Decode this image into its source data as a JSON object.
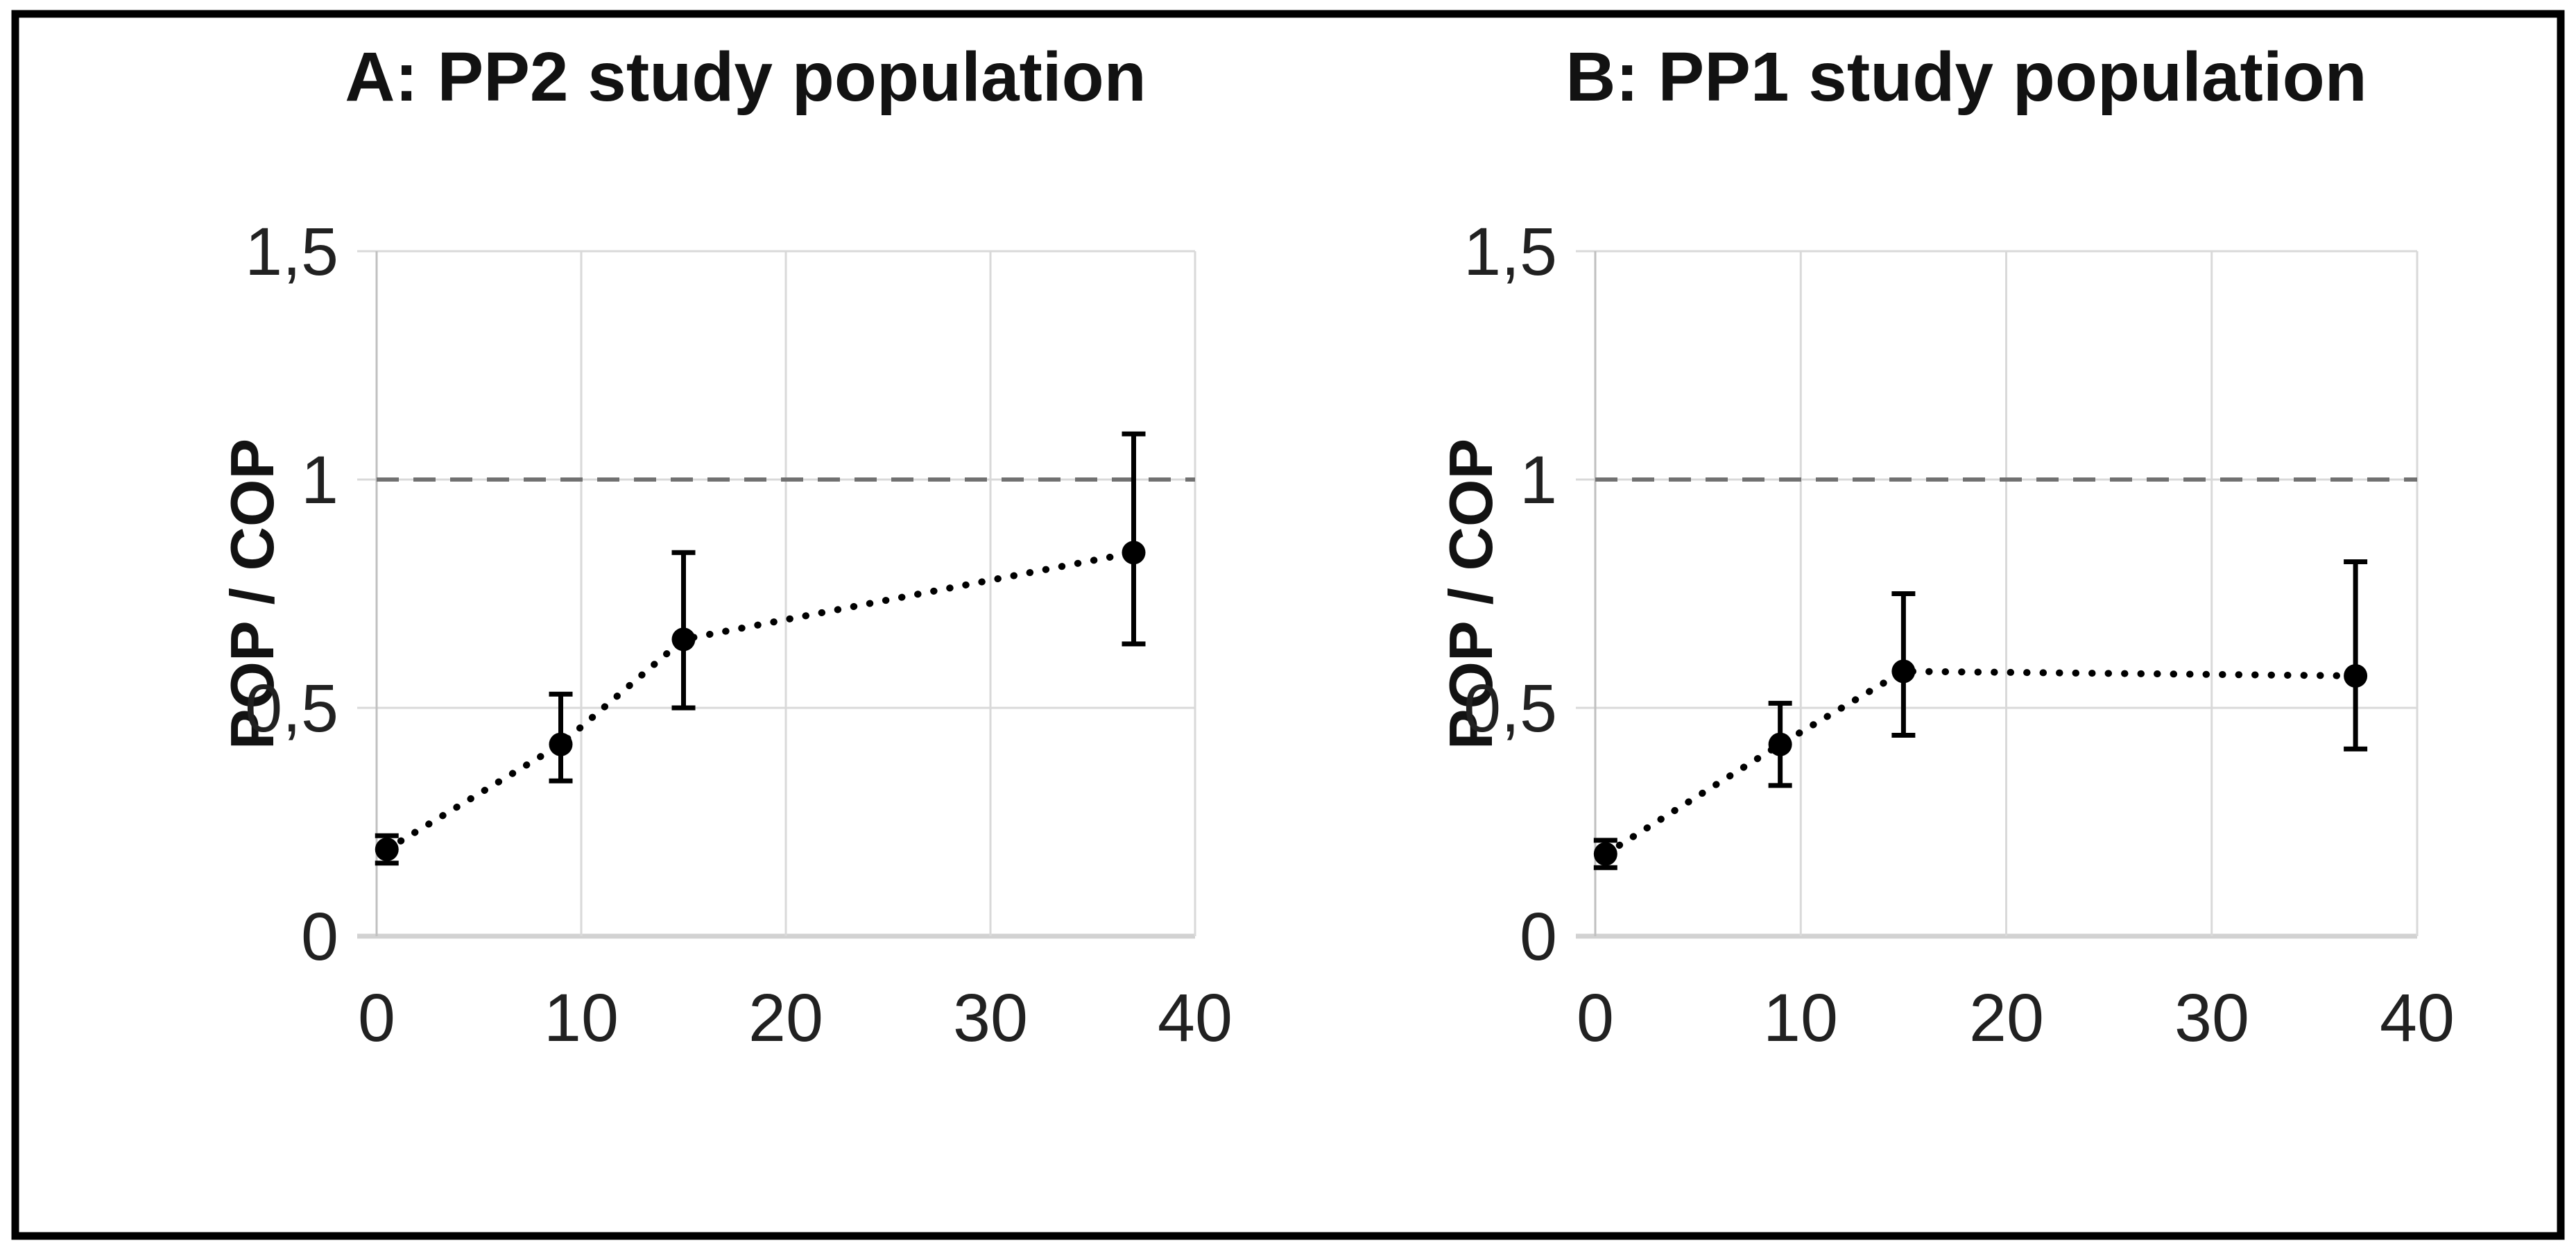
{
  "figure": {
    "background": "#ffffff",
    "border_color": "#000000"
  },
  "colors": {
    "gridline": "#d9d9d9",
    "axis_line": "#c0c0c0",
    "zero_axis_line": "#d2d2d2",
    "reference_line": "#717171",
    "series": "#000000",
    "error_bar": "#000000",
    "tick_label": "#212121",
    "title": "#121212"
  },
  "chart_data": [
    {
      "id": "A",
      "type": "line",
      "title": "A: PP2 study population",
      "ylabel": "POP / COP",
      "xlabel": "",
      "x": [
        0.5,
        9,
        15,
        37
      ],
      "y": [
        0.19,
        0.42,
        0.65,
        0.84
      ],
      "y_err_low": [
        0.16,
        0.34,
        0.5,
        0.64
      ],
      "y_err_high": [
        0.22,
        0.53,
        0.84,
        1.1
      ],
      "reference_line_y": 1,
      "xlim": [
        0,
        40
      ],
      "ylim": [
        0,
        1.5
      ],
      "x_ticks": [
        0,
        10,
        20,
        30,
        40
      ],
      "x_tick_labels": [
        "0",
        "10",
        "20",
        "30",
        "40"
      ],
      "y_ticks": [
        0,
        0.5,
        1,
        1.5
      ],
      "y_tick_labels": [
        "0",
        "0,5",
        "1",
        "1,5"
      ],
      "grid": true,
      "legend": "none",
      "line_style": "dotted",
      "marker": "filled-circle"
    },
    {
      "id": "B",
      "type": "line",
      "title": "B: PP1 study population",
      "ylabel": "POP / COP",
      "xlabel": "",
      "x": [
        0.5,
        9,
        15,
        37
      ],
      "y": [
        0.18,
        0.42,
        0.58,
        0.57
      ],
      "y_err_low": [
        0.15,
        0.33,
        0.44,
        0.41
      ],
      "y_err_high": [
        0.21,
        0.51,
        0.75,
        0.82
      ],
      "reference_line_y": 1,
      "xlim": [
        0,
        40
      ],
      "ylim": [
        0,
        1.5
      ],
      "x_ticks": [
        0,
        10,
        20,
        30,
        40
      ],
      "x_tick_labels": [
        "0",
        "10",
        "20",
        "30",
        "40"
      ],
      "y_ticks": [
        0,
        0.5,
        1,
        1.5
      ],
      "y_tick_labels": [
        "0",
        "0,5",
        "1",
        "1,5"
      ],
      "grid": true,
      "legend": "none",
      "line_style": "dotted",
      "marker": "filled-circle"
    }
  ]
}
